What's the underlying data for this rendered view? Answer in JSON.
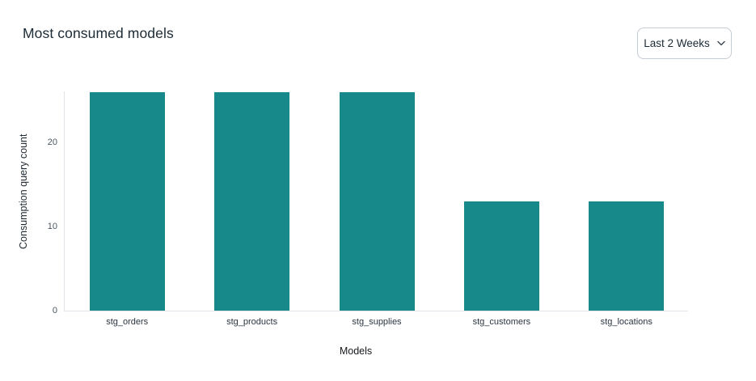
{
  "header": {
    "title": "Most consumed models"
  },
  "filter": {
    "label": "Last 2 Weeks",
    "icon": "chevron-down-icon"
  },
  "colors": {
    "bar": "#17898B",
    "title_text": "#1C2B36",
    "axis_line": "#E1E4E8",
    "tick_text": "#4A545E",
    "category_text": "#2A3440",
    "dropdown_border": "#C6CCD4",
    "background": "#FFFFFF"
  },
  "chart_data": {
    "type": "bar",
    "title": "Most consumed models",
    "categories": [
      "stg_orders",
      "stg_products",
      "stg_supplies",
      "stg_customers",
      "stg_locations"
    ],
    "values": [
      26,
      26,
      26,
      13,
      13
    ],
    "xlabel": "Models",
    "ylabel": "Consumption query count",
    "yticks": [
      0,
      10,
      20
    ],
    "ylim": [
      0,
      26.2
    ],
    "grid": false,
    "legend": false,
    "bar_color": "#17898B"
  }
}
